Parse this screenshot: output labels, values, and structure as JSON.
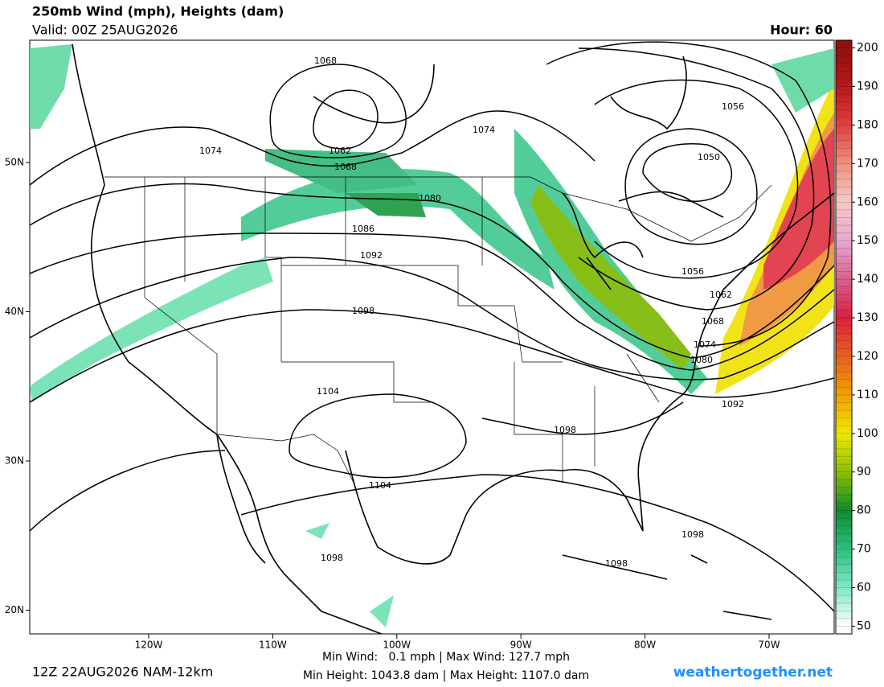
{
  "header": {
    "title": "250mb Wind (mph), Heights (dam)",
    "valid": "Valid: 00Z 25AUG2026",
    "hour": "Hour: 60"
  },
  "map": {
    "lat_ticks": [
      {
        "value": 50,
        "label": "50N"
      },
      {
        "value": 40,
        "label": "40N"
      },
      {
        "value": 30,
        "label": "30N"
      },
      {
        "value": 20,
        "label": "20N"
      }
    ],
    "lon_ticks": [
      {
        "value": -120,
        "label": "120W"
      },
      {
        "value": -110,
        "label": "110W"
      },
      {
        "value": -100,
        "label": "100W"
      },
      {
        "value": -90,
        "label": "90W"
      },
      {
        "value": -80,
        "label": "80W"
      },
      {
        "value": -70,
        "label": "70W"
      }
    ],
    "contour_labels": [
      1068,
      1062,
      1068,
      1074,
      1074,
      1080,
      1086,
      1092,
      1098,
      1104,
      1104,
      1098,
      1098,
      1098,
      1098,
      1056,
      1050,
      1056,
      1062,
      1068,
      1074,
      1080,
      1092
    ]
  },
  "colorbar": {
    "lim": [
      48,
      202
    ],
    "ticks": [
      50,
      60,
      70,
      80,
      90,
      100,
      110,
      120,
      130,
      140,
      150,
      160,
      170,
      180,
      190,
      200
    ],
    "colors": [
      "#ffffff",
      "#7fe8c8",
      "#2fc080",
      "#108a30",
      "#8cc000",
      "#f0e800",
      "#f0a000",
      "#e86020",
      "#d82040",
      "#d86090",
      "#e8a8d0",
      "#f4c8c8",
      "#f09080",
      "#e04040",
      "#b81818",
      "#901010"
    ]
  },
  "footer": {
    "run": "12Z 22AUG2026 NAM-12km",
    "wind_stats": "Min Wind:   0.1 mph | Max Wind: 127.7 mph",
    "height_stats": "Min Height: 1043.8 dam | Max Height: 1107.0 dam",
    "source": "weathertogether.net"
  }
}
